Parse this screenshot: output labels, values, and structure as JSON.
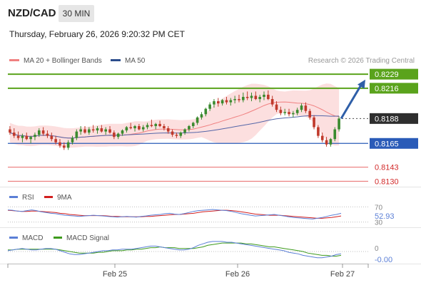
{
  "header": {
    "symbol": "NZD/CAD",
    "timeframe": "30 MIN",
    "datetime": "Thursday, February 26, 2026 9:20:32 PM CET"
  },
  "legend": {
    "items": [
      {
        "label": "MA 20 + Bollinger Bands",
        "color": "#f08080"
      },
      {
        "label": "MA 50",
        "color": "#2b4d8c"
      }
    ],
    "copyright": "Research © 2026 Trading Central"
  },
  "colors": {
    "up": "#3a8a2e",
    "down": "#c0392b",
    "resistance": "#5aa31c",
    "support_blue": "#2a5bb8",
    "support_red": "#e86a6a",
    "band_fill": "#fbd9d9",
    "ma20": "#f08080",
    "ma50": "#5566a8",
    "arrow": "#2f5fa8",
    "last_price_bg": "#2e2e2e"
  },
  "chart_data": [
    {
      "type": "line",
      "panel": "price",
      "ylim": [
        0.8125,
        0.8235
      ],
      "x_ticks": [
        "Feb 25",
        "Feb 26",
        "Feb 27"
      ],
      "levels": [
        {
          "value": 0.8229,
          "label": "0.8229",
          "kind": "resistance"
        },
        {
          "value": 0.8216,
          "label": "0.8216",
          "kind": "resistance"
        },
        {
          "value": 0.8188,
          "label": "0.8188",
          "kind": "last"
        },
        {
          "value": 0.8165,
          "label": "0.8165",
          "kind": "support_blue"
        },
        {
          "value": 0.8143,
          "label": "0.8143",
          "kind": "support_red"
        },
        {
          "value": 0.813,
          "label": "0.8130",
          "kind": "support_red"
        }
      ],
      "projection": {
        "from": 0.8188,
        "to": 0.8224
      },
      "candles": [
        [
          0.8178,
          0.8181,
          0.8173,
          0.8175
        ],
        [
          0.8175,
          0.8179,
          0.817,
          0.8172
        ],
        [
          0.8172,
          0.8176,
          0.8168,
          0.817
        ],
        [
          0.817,
          0.8174,
          0.8166,
          0.8172
        ],
        [
          0.8172,
          0.8175,
          0.8168,
          0.8169
        ],
        [
          0.8169,
          0.8172,
          0.8165,
          0.8171
        ],
        [
          0.8171,
          0.8175,
          0.8168,
          0.8173
        ],
        [
          0.8173,
          0.8179,
          0.8171,
          0.8177
        ],
        [
          0.8177,
          0.818,
          0.8172,
          0.8174
        ],
        [
          0.8174,
          0.8177,
          0.817,
          0.8172
        ],
        [
          0.8172,
          0.8175,
          0.8167,
          0.8169
        ],
        [
          0.8169,
          0.8172,
          0.8164,
          0.8166
        ],
        [
          0.8166,
          0.8169,
          0.8161,
          0.8163
        ],
        [
          0.8163,
          0.8166,
          0.8159,
          0.8161
        ],
        [
          0.8161,
          0.8168,
          0.8159,
          0.8166
        ],
        [
          0.8166,
          0.8172,
          0.8164,
          0.817
        ],
        [
          0.817,
          0.8178,
          0.8168,
          0.8176
        ],
        [
          0.8176,
          0.8181,
          0.8173,
          0.8178
        ],
        [
          0.8178,
          0.8181,
          0.8174,
          0.8175
        ],
        [
          0.8175,
          0.818,
          0.8173,
          0.8178
        ],
        [
          0.8178,
          0.8182,
          0.8175,
          0.8177
        ],
        [
          0.8177,
          0.8181,
          0.8174,
          0.8179
        ],
        [
          0.8179,
          0.8182,
          0.8175,
          0.8176
        ],
        [
          0.8176,
          0.818,
          0.8173,
          0.8178
        ],
        [
          0.8178,
          0.8181,
          0.8174,
          0.8175
        ],
        [
          0.8175,
          0.8177,
          0.8169,
          0.8171
        ],
        [
          0.8171,
          0.8175,
          0.8169,
          0.8174
        ],
        [
          0.8174,
          0.8178,
          0.8172,
          0.8177
        ],
        [
          0.8177,
          0.8181,
          0.8175,
          0.818
        ],
        [
          0.818,
          0.8184,
          0.8178,
          0.8179
        ],
        [
          0.8179,
          0.8182,
          0.8176,
          0.8181
        ],
        [
          0.8181,
          0.8183,
          0.8177,
          0.8178
        ],
        [
          0.8178,
          0.8182,
          0.8176,
          0.818
        ],
        [
          0.818,
          0.8184,
          0.8178,
          0.8182
        ],
        [
          0.8182,
          0.8187,
          0.818,
          0.8181
        ],
        [
          0.8181,
          0.8184,
          0.8178,
          0.8183
        ],
        [
          0.8183,
          0.8186,
          0.818,
          0.8181
        ],
        [
          0.8181,
          0.8183,
          0.8177,
          0.8179
        ],
        [
          0.8179,
          0.8181,
          0.8174,
          0.8176
        ],
        [
          0.8176,
          0.8178,
          0.8171,
          0.8173
        ],
        [
          0.8173,
          0.8175,
          0.817,
          0.8172
        ],
        [
          0.8172,
          0.8176,
          0.817,
          0.8175
        ],
        [
          0.8175,
          0.8179,
          0.8173,
          0.8178
        ],
        [
          0.8178,
          0.8182,
          0.8176,
          0.8181
        ],
        [
          0.8181,
          0.8185,
          0.8179,
          0.8184
        ],
        [
          0.8184,
          0.819,
          0.8182,
          0.8189
        ],
        [
          0.8189,
          0.8194,
          0.8187,
          0.8192
        ],
        [
          0.8192,
          0.8198,
          0.819,
          0.8197
        ],
        [
          0.8197,
          0.8203,
          0.8195,
          0.8201
        ],
        [
          0.8201,
          0.8206,
          0.8198,
          0.8204
        ],
        [
          0.8204,
          0.8207,
          0.8199,
          0.8202
        ],
        [
          0.8202,
          0.8206,
          0.82,
          0.8205
        ],
        [
          0.8205,
          0.8208,
          0.8201,
          0.8203
        ],
        [
          0.8203,
          0.8207,
          0.82,
          0.8205
        ],
        [
          0.8205,
          0.8209,
          0.8202,
          0.8206
        ],
        [
          0.8206,
          0.821,
          0.8203,
          0.8205
        ],
        [
          0.8205,
          0.8212,
          0.8203,
          0.8208
        ],
        [
          0.8208,
          0.8213,
          0.8205,
          0.8207
        ],
        [
          0.8207,
          0.8212,
          0.8204,
          0.8209
        ],
        [
          0.8209,
          0.8213,
          0.8205,
          0.8206
        ],
        [
          0.8206,
          0.821,
          0.8203,
          0.8208
        ],
        [
          0.8208,
          0.8213,
          0.8205,
          0.821
        ],
        [
          0.821,
          0.8214,
          0.8205,
          0.8206
        ],
        [
          0.8206,
          0.8209,
          0.8199,
          0.8201
        ],
        [
          0.8201,
          0.8204,
          0.8194,
          0.8196
        ],
        [
          0.8196,
          0.8199,
          0.8191,
          0.8193
        ],
        [
          0.8193,
          0.8197,
          0.8191,
          0.8194
        ],
        [
          0.8194,
          0.8197,
          0.819,
          0.8192
        ],
        [
          0.8192,
          0.8195,
          0.8189,
          0.8193
        ],
        [
          0.8193,
          0.8198,
          0.8191,
          0.8196
        ],
        [
          0.8196,
          0.8202,
          0.8194,
          0.82
        ],
        [
          0.82,
          0.8203,
          0.8193,
          0.8195
        ],
        [
          0.8195,
          0.8197,
          0.8187,
          0.8189
        ],
        [
          0.8189,
          0.8191,
          0.8178,
          0.818
        ],
        [
          0.818,
          0.8182,
          0.817,
          0.8172
        ],
        [
          0.8172,
          0.8175,
          0.8166,
          0.8168
        ],
        [
          0.8168,
          0.8171,
          0.8162,
          0.8164
        ],
        [
          0.8164,
          0.817,
          0.8162,
          0.8169
        ],
        [
          0.8169,
          0.818,
          0.8167,
          0.8178
        ],
        [
          0.8178,
          0.819,
          0.8176,
          0.8188
        ]
      ]
    },
    {
      "type": "line",
      "panel": "rsi",
      "legend": [
        {
          "label": "RSI",
          "color": "#5b7fd6"
        },
        {
          "label": "9MA",
          "color": "#d21f1f"
        }
      ],
      "ylim": [
        22,
        78
      ],
      "y_ticks": [
        30,
        70
      ],
      "value_label": "52.93",
      "rsi": [
        62,
        61,
        59,
        58,
        60,
        62,
        60,
        57,
        55,
        53,
        52,
        50,
        48,
        47,
        46,
        45,
        46,
        47,
        48,
        47,
        46,
        45,
        44,
        43,
        44,
        45,
        44,
        43,
        45,
        46,
        48,
        49,
        50,
        52,
        53,
        51,
        50,
        52,
        55,
        58,
        60,
        61,
        62,
        63,
        62,
        61,
        60,
        58,
        55,
        52,
        50,
        48,
        46,
        47,
        48,
        49,
        50,
        48,
        46,
        44,
        42,
        41,
        40,
        39,
        38,
        40,
        42,
        45,
        48,
        50,
        53
      ],
      "ma9": [
        61,
        60,
        59,
        58,
        58,
        59,
        59,
        58,
        57,
        56,
        55,
        53,
        52,
        50,
        49,
        48,
        47,
        47,
        47,
        47,
        47,
        46,
        45,
        45,
        44,
        44,
        44,
        44,
        44,
        45,
        45,
        46,
        47,
        48,
        49,
        50,
        50,
        51,
        52,
        53,
        55,
        57,
        58,
        59,
        60,
        61,
        61,
        60,
        59,
        57,
        55,
        53,
        51,
        50,
        49,
        48,
        48,
        48,
        47,
        46,
        45,
        44,
        43,
        42,
        41,
        40,
        40,
        41,
        42,
        44,
        46
      ]
    },
    {
      "type": "line",
      "panel": "macd",
      "legend": [
        {
          "label": "MACD",
          "color": "#5b7fd6"
        },
        {
          "label": "MACD Signal",
          "color": "#3d9a1c"
        }
      ],
      "ylim": [
        -0.0012,
        0.0012
      ],
      "y_ticks": [
        0
      ],
      "y_tick_labels": [
        "0"
      ],
      "value_label": "-0.00",
      "macd": [
        0.0001,
        0.0002,
        0.0003,
        0.0004,
        0.0003,
        0.0002,
        0.0002,
        0.0003,
        0.0004,
        0.0004,
        0.0003,
        0.0001,
        -0.0001,
        -0.0003,
        -0.0004,
        -0.0004,
        -0.0003,
        -0.0002,
        -0.0001,
        0.0,
        0.0001,
        0.0001,
        0.0002,
        0.0002,
        0.0003,
        0.0003,
        0.0003,
        0.0004,
        0.0005,
        0.0006,
        0.0007,
        0.0007,
        0.0006,
        0.0005,
        0.0004,
        0.0003,
        0.0002,
        0.0002,
        0.0003,
        0.0005,
        0.0008,
        0.001,
        0.0012,
        0.0013,
        0.0013,
        0.0013,
        0.0012,
        0.0012,
        0.0011,
        0.001,
        0.0009,
        0.0008,
        0.0007,
        0.0006,
        0.0005,
        0.0004,
        0.0003,
        0.0002,
        0.0001,
        -0.0001,
        -0.0002,
        -0.0003,
        -0.0005,
        -0.0006,
        -0.0007,
        -0.0008,
        -0.0008,
        -0.0007,
        -0.0006,
        -0.0004,
        -0.0003
      ],
      "signal": [
        0.0002,
        0.0002,
        0.0003,
        0.0003,
        0.0003,
        0.0003,
        0.0003,
        0.0003,
        0.0003,
        0.0003,
        0.0003,
        0.0002,
        0.0001,
        0.0,
        -0.0001,
        -0.0002,
        -0.0002,
        -0.0002,
        -0.0002,
        -0.0001,
        -0.0001,
        0.0,
        0.0001,
        0.0001,
        0.0001,
        0.0002,
        0.0002,
        0.0003,
        0.0003,
        0.0004,
        0.0005,
        0.0005,
        0.0006,
        0.0005,
        0.0005,
        0.0005,
        0.0004,
        0.0004,
        0.0004,
        0.0004,
        0.0005,
        0.0006,
        0.0008,
        0.0009,
        0.001,
        0.0011,
        0.0011,
        0.0011,
        0.0011,
        0.0011,
        0.001,
        0.001,
        0.0009,
        0.0008,
        0.0007,
        0.0006,
        0.0006,
        0.0005,
        0.0004,
        0.0003,
        0.0002,
        0.0001,
        0.0,
        -0.0002,
        -0.0003,
        -0.0004,
        -0.0005,
        -0.0005,
        -0.0006,
        -0.0006,
        -0.0005
      ]
    }
  ]
}
